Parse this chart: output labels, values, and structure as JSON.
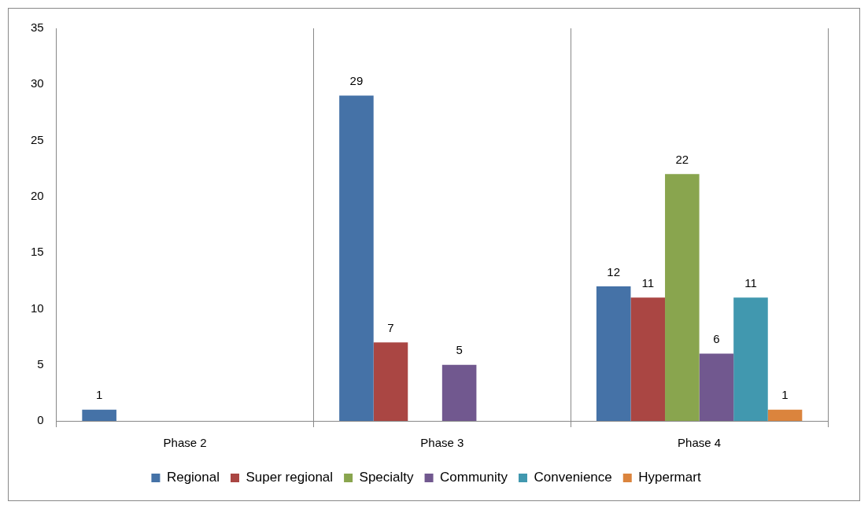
{
  "chart_data": {
    "type": "bar",
    "categories": [
      "Phase 2",
      "Phase 3",
      "Phase 4"
    ],
    "series": [
      {
        "name": "Regional",
        "color": "#4572a7",
        "values": [
          1,
          29,
          12
        ]
      },
      {
        "name": "Super regional",
        "color": "#aa4643",
        "values": [
          null,
          7,
          11
        ]
      },
      {
        "name": "Specialty",
        "color": "#89a54e",
        "values": [
          null,
          null,
          22
        ]
      },
      {
        "name": "Community",
        "color": "#71588f",
        "values": [
          null,
          5,
          6
        ]
      },
      {
        "name": "Convenience",
        "color": "#4198af",
        "values": [
          null,
          null,
          11
        ]
      },
      {
        "name": "Hypermart",
        "color": "#db843d",
        "values": [
          null,
          null,
          1
        ]
      }
    ],
    "ylim": [
      0,
      35
    ],
    "yticks": [
      0,
      5,
      10,
      15,
      20,
      25,
      30,
      35
    ],
    "grid": "x",
    "legend": "bottom",
    "data_labels": true
  }
}
